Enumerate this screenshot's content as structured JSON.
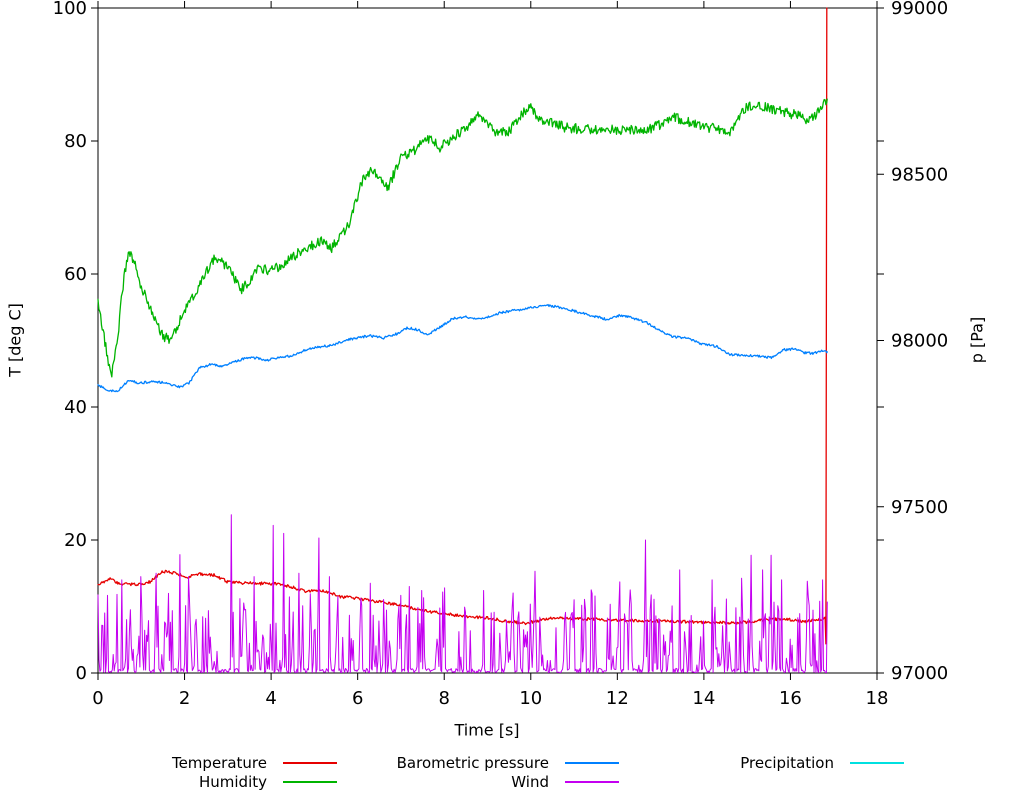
{
  "chart_data": {
    "type": "line",
    "title": "",
    "xlabel": "Time [s]",
    "ylabel": "T [deg C]",
    "y2label": "p [Pa]",
    "xlim": [
      0,
      18
    ],
    "ylim": [
      0,
      100
    ],
    "y2lim": [
      97000,
      99000
    ],
    "x_ticks": [
      0,
      2,
      4,
      6,
      8,
      10,
      12,
      14,
      16,
      18
    ],
    "y_ticks": [
      0,
      20,
      40,
      60,
      80,
      100
    ],
    "y2_ticks": [
      97000,
      97500,
      98000,
      98500,
      99000
    ],
    "grid": false,
    "legend_position": "bottom",
    "data_end_time": 16.85,
    "series": [
      {
        "name": "Temperature",
        "color": "#e60000",
        "axis": "y1",
        "noise": 0.22,
        "keypoints": [
          [
            0,
            13.2
          ],
          [
            0.25,
            14.2
          ],
          [
            0.5,
            13.4
          ],
          [
            0.9,
            13.3
          ],
          [
            1.2,
            13.7
          ],
          [
            1.5,
            15.3
          ],
          [
            1.8,
            15.0
          ],
          [
            2.05,
            14.4
          ],
          [
            2.35,
            14.9
          ],
          [
            2.7,
            14.7
          ],
          [
            3.0,
            13.7
          ],
          [
            3.5,
            13.5
          ],
          [
            4.1,
            13.4
          ],
          [
            4.5,
            12.9
          ],
          [
            4.8,
            12.3
          ],
          [
            5.2,
            12.4
          ],
          [
            5.6,
            11.5
          ],
          [
            6.0,
            11.2
          ],
          [
            6.5,
            10.7
          ],
          [
            7.0,
            10.2
          ],
          [
            7.6,
            9.3
          ],
          [
            8.0,
            8.9
          ],
          [
            8.5,
            8.5
          ],
          [
            9.0,
            8.3
          ],
          [
            9.4,
            7.8
          ],
          [
            9.9,
            7.5
          ],
          [
            10.4,
            8.2
          ],
          [
            10.8,
            8.3
          ],
          [
            11.3,
            8.1
          ],
          [
            11.8,
            8.0
          ],
          [
            12.4,
            7.9
          ],
          [
            13.0,
            7.8
          ],
          [
            13.6,
            7.7
          ],
          [
            14.2,
            7.6
          ],
          [
            14.7,
            7.5
          ],
          [
            15.2,
            7.8
          ],
          [
            15.6,
            8.1
          ],
          [
            15.9,
            8.1
          ],
          [
            16.3,
            7.7
          ],
          [
            16.6,
            8.0
          ],
          [
            16.81,
            8.2
          ],
          [
            16.83,
            0.2
          ],
          [
            16.84,
            100
          ]
        ]
      },
      {
        "name": "Humidity",
        "color": "#00b400",
        "axis": "y1",
        "noise": 0.75,
        "keypoints": [
          [
            0,
            55.5
          ],
          [
            0.1,
            52.0
          ],
          [
            0.3,
            44.5
          ],
          [
            0.45,
            50.0
          ],
          [
            0.55,
            57.0
          ],
          [
            0.7,
            63.5
          ],
          [
            0.85,
            61.5
          ],
          [
            1.0,
            58.0
          ],
          [
            1.2,
            55.0
          ],
          [
            1.45,
            51.0
          ],
          [
            1.65,
            50.0
          ],
          [
            1.9,
            53.0
          ],
          [
            2.1,
            55.5
          ],
          [
            2.4,
            59.0
          ],
          [
            2.7,
            62.5
          ],
          [
            2.9,
            61.5
          ],
          [
            3.1,
            60.0
          ],
          [
            3.3,
            57.5
          ],
          [
            3.5,
            59.0
          ],
          [
            3.7,
            61.0
          ],
          [
            4.0,
            60.5
          ],
          [
            4.3,
            61.5
          ],
          [
            4.6,
            63.0
          ],
          [
            5.0,
            64.5
          ],
          [
            5.2,
            65.0
          ],
          [
            5.4,
            64.0
          ],
          [
            5.6,
            65.5
          ],
          [
            5.8,
            67.5
          ],
          [
            6.1,
            74.0
          ],
          [
            6.3,
            75.5
          ],
          [
            6.5,
            75.0
          ],
          [
            6.7,
            73.0
          ],
          [
            7.0,
            77.5
          ],
          [
            7.3,
            78.5
          ],
          [
            7.5,
            80.0
          ],
          [
            7.7,
            80.5
          ],
          [
            7.9,
            79.0
          ],
          [
            8.1,
            80.0
          ],
          [
            8.4,
            81.5
          ],
          [
            8.6,
            82.5
          ],
          [
            8.8,
            84.2
          ],
          [
            9.0,
            82.5
          ],
          [
            9.2,
            81.2
          ],
          [
            9.5,
            81.5
          ],
          [
            9.7,
            83.0
          ],
          [
            9.95,
            85.3
          ],
          [
            10.2,
            83.3
          ],
          [
            10.5,
            82.7
          ],
          [
            10.8,
            82.0
          ],
          [
            11.2,
            81.8
          ],
          [
            11.6,
            81.7
          ],
          [
            12.0,
            81.7
          ],
          [
            12.4,
            81.6
          ],
          [
            12.8,
            81.9
          ],
          [
            13.3,
            83.5
          ],
          [
            13.6,
            83.0
          ],
          [
            14.0,
            82.0
          ],
          [
            14.4,
            81.8
          ],
          [
            14.6,
            81.4
          ],
          [
            14.8,
            83.5
          ],
          [
            15.0,
            85.2
          ],
          [
            15.3,
            85.3
          ],
          [
            15.6,
            84.8
          ],
          [
            16.0,
            84.1
          ],
          [
            16.2,
            83.9
          ],
          [
            16.4,
            83.2
          ],
          [
            16.6,
            84.0
          ],
          [
            16.85,
            86.3
          ]
        ]
      },
      {
        "name": "Barometric pressure",
        "color": "#0080ff",
        "axis": "y2",
        "noise": 3.5,
        "keypoints": [
          [
            0,
            97866
          ],
          [
            0.2,
            97852
          ],
          [
            0.45,
            97846
          ],
          [
            0.7,
            97880
          ],
          [
            0.95,
            97872
          ],
          [
            1.2,
            97876
          ],
          [
            1.5,
            97874
          ],
          [
            1.7,
            97866
          ],
          [
            1.9,
            97860
          ],
          [
            2.1,
            97872
          ],
          [
            2.35,
            97918
          ],
          [
            2.6,
            97928
          ],
          [
            2.85,
            97922
          ],
          [
            3.1,
            97934
          ],
          [
            3.4,
            97946
          ],
          [
            3.65,
            97948
          ],
          [
            3.9,
            97940
          ],
          [
            4.2,
            97950
          ],
          [
            4.5,
            97954
          ],
          [
            4.8,
            97972
          ],
          [
            5.1,
            97980
          ],
          [
            5.4,
            97986
          ],
          [
            5.7,
            98000
          ],
          [
            6.05,
            98010
          ],
          [
            6.3,
            98014
          ],
          [
            6.6,
            98008
          ],
          [
            6.9,
            98020
          ],
          [
            7.15,
            98038
          ],
          [
            7.4,
            98032
          ],
          [
            7.6,
            98016
          ],
          [
            7.8,
            98032
          ],
          [
            8.2,
            98066
          ],
          [
            8.5,
            98072
          ],
          [
            8.7,
            98064
          ],
          [
            9.0,
            98070
          ],
          [
            9.3,
            98084
          ],
          [
            9.6,
            98090
          ],
          [
            9.9,
            98096
          ],
          [
            10.15,
            98102
          ],
          [
            10.4,
            98106
          ],
          [
            10.65,
            98100
          ],
          [
            10.9,
            98092
          ],
          [
            11.2,
            98082
          ],
          [
            11.5,
            98072
          ],
          [
            11.8,
            98062
          ],
          [
            12.05,
            98076
          ],
          [
            12.35,
            98068
          ],
          [
            12.7,
            98052
          ],
          [
            13.0,
            98030
          ],
          [
            13.25,
            98012
          ],
          [
            13.6,
            98008
          ],
          [
            13.95,
            97990
          ],
          [
            14.3,
            97982
          ],
          [
            14.6,
            97958
          ],
          [
            14.95,
            97956
          ],
          [
            15.25,
            97954
          ],
          [
            15.55,
            97948
          ],
          [
            15.85,
            97972
          ],
          [
            16.1,
            97974
          ],
          [
            16.35,
            97962
          ],
          [
            16.55,
            97962
          ],
          [
            16.7,
            97968
          ],
          [
            16.85,
            97966
          ]
        ]
      },
      {
        "name": "Wind",
        "color": "#c400f0",
        "axis": "y1",
        "style": "noise",
        "base_max": 12.5,
        "dropout_chance": 0.22,
        "boost_chance": 0.05,
        "sample_dt": 0.022,
        "t_end": 16.85,
        "spikes": [
          [
            0.55,
            14.0
          ],
          [
            1.0,
            14.5
          ],
          [
            1.35,
            15.0
          ],
          [
            1.9,
            17.8
          ],
          [
            2.1,
            14.5
          ],
          [
            3.07,
            23.8
          ],
          [
            3.6,
            14.5
          ],
          [
            4.05,
            22.2
          ],
          [
            4.3,
            21.0
          ],
          [
            4.65,
            15.0
          ],
          [
            5.1,
            20.3
          ],
          [
            5.35,
            14.5
          ],
          [
            6.3,
            13.5
          ],
          [
            7.2,
            13.0
          ],
          [
            8.0,
            12.8
          ],
          [
            8.9,
            12.4
          ],
          [
            10.1,
            15.3
          ],
          [
            11.4,
            12.5
          ],
          [
            12.05,
            13.7
          ],
          [
            12.3,
            12.5
          ],
          [
            12.65,
            20.0
          ],
          [
            13.45,
            15.5
          ],
          [
            14.2,
            14.0
          ],
          [
            15.1,
            17.7
          ],
          [
            15.35,
            15.5
          ],
          [
            15.55,
            17.7
          ],
          [
            15.8,
            14.0
          ],
          [
            16.4,
            13.8
          ],
          [
            16.75,
            14.0
          ]
        ]
      },
      {
        "name": "Precipitation",
        "color": "#00e0e0",
        "axis": "y1",
        "visible": false,
        "keypoints": []
      }
    ]
  }
}
